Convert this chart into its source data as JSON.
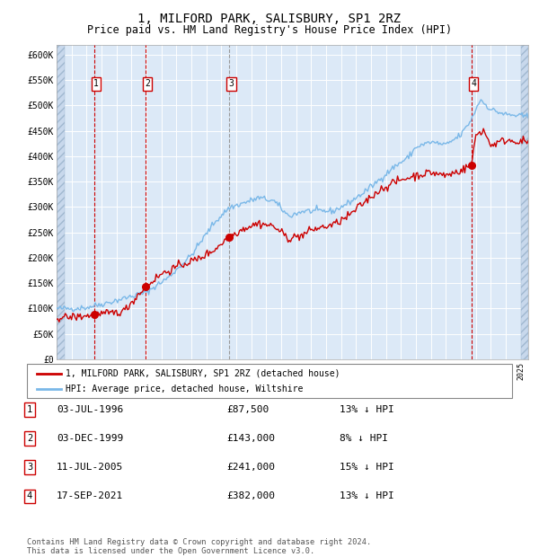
{
  "title": "1, MILFORD PARK, SALISBURY, SP1 2RZ",
  "subtitle": "Price paid vs. HM Land Registry's House Price Index (HPI)",
  "title_fontsize": 10,
  "subtitle_fontsize": 8.5,
  "background_color": "#ffffff",
  "plot_bg_color": "#dce9f7",
  "hpi_color": "#7ab8e8",
  "price_color": "#cc0000",
  "ylim": [
    0,
    620000
  ],
  "yticks": [
    0,
    50000,
    100000,
    150000,
    200000,
    250000,
    300000,
    350000,
    400000,
    450000,
    500000,
    550000,
    600000
  ],
  "purchases": [
    {
      "label": "1",
      "date_str": "03-JUL-1996",
      "year": 1996.5,
      "price": 87500,
      "hpi_pct": "13%"
    },
    {
      "label": "2",
      "date_str": "03-DEC-1999",
      "year": 1999.92,
      "price": 143000,
      "hpi_pct": "8%"
    },
    {
      "label": "3",
      "date_str": "11-JUL-2005",
      "year": 2005.52,
      "price": 241000,
      "hpi_pct": "15%"
    },
    {
      "label": "4",
      "date_str": "17-SEP-2021",
      "year": 2021.71,
      "price": 382000,
      "hpi_pct": "13%"
    }
  ],
  "legend_label_price": "1, MILFORD PARK, SALISBURY, SP1 2RZ (detached house)",
  "legend_label_hpi": "HPI: Average price, detached house, Wiltshire",
  "footnote": "Contains HM Land Registry data © Crown copyright and database right 2024.\nThis data is licensed under the Open Government Licence v3.0.",
  "xmin": 1994.0,
  "xmax": 2025.5
}
